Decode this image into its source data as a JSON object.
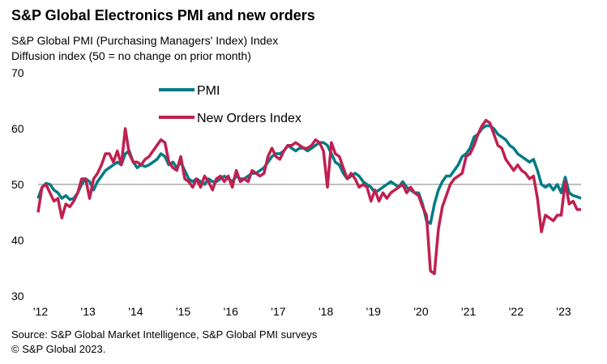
{
  "chart_data": {
    "type": "line",
    "title": "S&P Global Electronics PMI and new orders",
    "subtitle": [
      "S&P Global PMI (Purchasing Managers' Index) Index",
      "Diffusion index (50 = no change on prior month)"
    ],
    "source": [
      "Source: S&P Global Market Intelligence, S&P Global PMI surveys",
      "© S&P Global 2023."
    ],
    "categories": [
      "'12",
      null,
      null,
      null,
      null,
      null,
      null,
      null,
      null,
      null,
      null,
      null,
      "'13",
      null,
      null,
      null,
      null,
      null,
      null,
      null,
      null,
      null,
      null,
      null,
      "'14",
      null,
      null,
      null,
      null,
      null,
      null,
      null,
      null,
      null,
      null,
      null,
      "'15",
      null,
      null,
      null,
      null,
      null,
      null,
      null,
      null,
      null,
      null,
      null,
      "'16",
      null,
      null,
      null,
      null,
      null,
      null,
      null,
      null,
      null,
      null,
      null,
      "'17",
      null,
      null,
      null,
      null,
      null,
      null,
      null,
      null,
      null,
      null,
      null,
      "'18",
      null,
      null,
      null,
      null,
      null,
      null,
      null,
      null,
      null,
      null,
      null,
      "'19",
      null,
      null,
      null,
      null,
      null,
      null,
      null,
      null,
      null,
      null,
      null,
      "'20",
      null,
      null,
      null,
      null,
      null,
      null,
      null,
      null,
      null,
      null,
      null,
      "'21",
      null,
      null,
      null,
      null,
      null,
      null,
      null,
      null,
      null,
      null,
      null,
      "'22",
      null,
      null,
      null,
      null,
      null,
      null,
      null,
      null,
      null,
      null,
      null,
      "'23",
      null,
      null,
      null,
      null,
      null
    ],
    "series": [
      {
        "name": "PMI",
        "color": "#007b85",
        "values": [
          47.5,
          49.5,
          50.2,
          50.0,
          49.0,
          48.5,
          47.5,
          48.0,
          47.3,
          47.5,
          48.5,
          50.0,
          51.0,
          50.5,
          49.0,
          50.5,
          51.5,
          52.5,
          53.0,
          53.5,
          54.0,
          53.5,
          55.5,
          56.0,
          54.0,
          53.0,
          53.5,
          53.2,
          53.5,
          54.0,
          54.5,
          55.5,
          55.0,
          53.5,
          54.0,
          53.0,
          54.0,
          52.5,
          51.0,
          50.5,
          51.0,
          50.5,
          50.0,
          51.0,
          50.5,
          50.5,
          51.0,
          51.5,
          51.0,
          50.5,
          51.5,
          51.0,
          51.0,
          51.5,
          52.0,
          52.0,
          52.5,
          53.0,
          54.0,
          55.0,
          55.5,
          55.5,
          56.0,
          57.0,
          56.5,
          56.0,
          56.5,
          56.5,
          56.0,
          56.5,
          57.0,
          57.5,
          57.5,
          57.0,
          55.5,
          54.0,
          53.5,
          52.0,
          51.0,
          51.5,
          52.0,
          51.5,
          50.5,
          50.0,
          49.5,
          48.5,
          49.0,
          49.5,
          50.0,
          50.5,
          50.0,
          49.5,
          50.5,
          49.5,
          49.0,
          48.5,
          48.5,
          46.5,
          43.5,
          43.0,
          46.5,
          49.0,
          50.5,
          51.5,
          51.5,
          52.5,
          53.5,
          55.0,
          55.5,
          56.5,
          58.5,
          59.0,
          60.0,
          60.5,
          60.5,
          60.0,
          59.0,
          58.5,
          58.0,
          57.0,
          56.5,
          55.5,
          55.0,
          54.5,
          54.0,
          54.5,
          52.5,
          50.0,
          49.5,
          50.0,
          49.0,
          50.0,
          48.5,
          51.3,
          48.5,
          48.0,
          47.8,
          47.5
        ]
      },
      {
        "name": "New Orders Index",
        "color": "#c0204f",
        "values": [
          45.0,
          49.5,
          50.0,
          48.5,
          47.0,
          47.5,
          44.0,
          46.5,
          46.0,
          47.0,
          48.5,
          51.0,
          51.0,
          47.5,
          51.0,
          52.0,
          53.5,
          55.5,
          55.5,
          54.0,
          56.0,
          53.5,
          60.0,
          55.5,
          54.0,
          54.0,
          53.5,
          54.5,
          55.0,
          56.0,
          57.0,
          58.0,
          57.5,
          54.0,
          53.0,
          52.5,
          55.0,
          51.0,
          50.5,
          49.5,
          51.0,
          49.5,
          51.5,
          50.5,
          49.0,
          51.0,
          51.5,
          50.5,
          51.5,
          49.5,
          52.5,
          50.5,
          51.0,
          50.5,
          52.5,
          52.0,
          51.5,
          52.0,
          55.0,
          56.5,
          55.0,
          54.5,
          56.0,
          57.0,
          57.0,
          57.5,
          57.0,
          56.5,
          56.5,
          57.0,
          58.0,
          57.5,
          56.0,
          49.5,
          57.5,
          55.5,
          55.0,
          53.0,
          51.0,
          52.0,
          51.0,
          49.5,
          50.0,
          49.5,
          47.0,
          49.0,
          47.0,
          48.5,
          47.5,
          48.5,
          49.0,
          49.5,
          50.0,
          48.5,
          49.5,
          48.5,
          48.0,
          46.0,
          44.5,
          34.5,
          34.0,
          42.0,
          46.0,
          48.0,
          50.0,
          51.0,
          51.5,
          52.0,
          55.0,
          55.5,
          57.0,
          59.0,
          60.5,
          61.5,
          61.0,
          59.0,
          57.0,
          56.5,
          54.5,
          53.5,
          52.5,
          53.5,
          52.5,
          52.0,
          51.0,
          51.5,
          47.5,
          41.5,
          44.5,
          44.0,
          43.5,
          44.5,
          44.5,
          50.5,
          46.5,
          47.0,
          45.5,
          45.5
        ]
      }
    ],
    "ylim": [
      30,
      70
    ],
    "yticks": [
      30,
      40,
      50,
      60,
      70
    ],
    "reference_line": 50,
    "grid": false
  }
}
